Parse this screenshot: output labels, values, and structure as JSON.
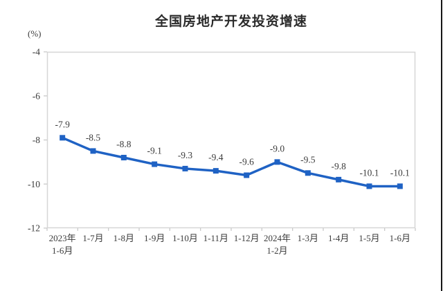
{
  "title": "全国房地产开发投资增速",
  "unit_label": "(%)",
  "chart_data": {
    "type": "line",
    "title": "全国房地产开发投资增速",
    "ylabel": "(%)",
    "categories": [
      "2023年\n1-6月",
      "1-7月",
      "1-8月",
      "1-9月",
      "1-10月",
      "1-11月",
      "1-12月",
      "2024年\n1-2月",
      "1-3月",
      "1-4月",
      "1-5月",
      "1-6月"
    ],
    "values": [
      -7.9,
      -8.5,
      -8.8,
      -9.1,
      -9.3,
      -9.4,
      -9.6,
      -9.0,
      -9.5,
      -9.8,
      -10.1,
      -10.1
    ],
    "data_labels": [
      "-7.9",
      "-8.5",
      "-8.8",
      "-9.1",
      "-9.3",
      "-9.4",
      "-9.6",
      "-9.0",
      "-9.5",
      "-9.8",
      "-10.1",
      "-10.1"
    ],
    "ylim": [
      -12,
      -4
    ],
    "yticks": [
      -4,
      -6,
      -8,
      -10,
      -12
    ],
    "grid": false,
    "legend_position": "none",
    "line_color": "#1f62c4",
    "label_color": "#3b3b3b",
    "axis_line_color": "#d6d6d6",
    "tick_color": "#c9c9c9"
  }
}
